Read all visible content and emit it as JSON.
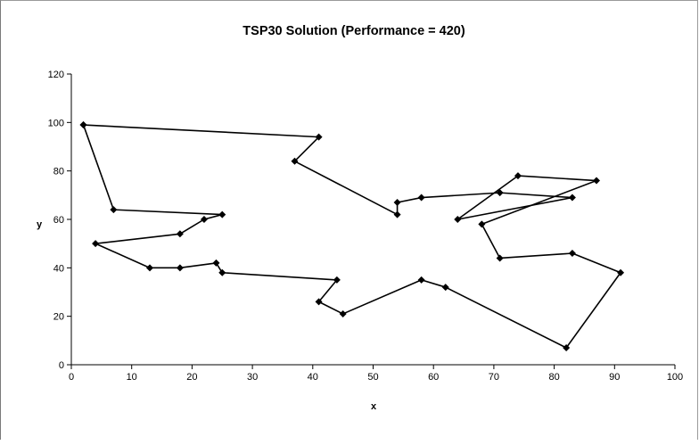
{
  "chart_data": {
    "type": "line",
    "title": "TSP30 Solution (Performance = 420)",
    "xlabel": "x",
    "ylabel": "y",
    "xlim": [
      0,
      100
    ],
    "ylim": [
      0,
      120
    ],
    "xticks": [
      "0",
      "10",
      "20",
      "30",
      "40",
      "50",
      "60",
      "70",
      "80",
      "90",
      "100"
    ],
    "yticks": [
      "0",
      "20",
      "40",
      "60",
      "80",
      "100",
      "120"
    ],
    "grid": false,
    "legend": "none",
    "marker": "diamond",
    "line_color": "#000000",
    "series": [
      {
        "points": [
          [
            2,
            99
          ],
          [
            41,
            94
          ],
          [
            37,
            84
          ],
          [
            54,
            62
          ],
          [
            54,
            67
          ],
          [
            58,
            69
          ],
          [
            71,
            71
          ],
          [
            83,
            69
          ],
          [
            64,
            60
          ],
          [
            74,
            78
          ],
          [
            87,
            76
          ],
          [
            68,
            58
          ],
          [
            71,
            44
          ],
          [
            83,
            46
          ],
          [
            91,
            38
          ],
          [
            82,
            7
          ],
          [
            62,
            32
          ],
          [
            58,
            35
          ],
          [
            45,
            21
          ],
          [
            41,
            26
          ],
          [
            44,
            35
          ],
          [
            25,
            38
          ],
          [
            24,
            42
          ],
          [
            18,
            40
          ],
          [
            13,
            40
          ],
          [
            4,
            50
          ],
          [
            18,
            54
          ],
          [
            22,
            60
          ],
          [
            25,
            62
          ],
          [
            7,
            64
          ],
          [
            2,
            99
          ]
        ]
      }
    ]
  }
}
